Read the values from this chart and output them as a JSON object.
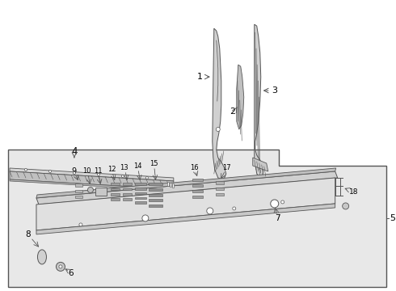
{
  "bg_color": "#ffffff",
  "border_color": "#555555",
  "line_color": "#555555",
  "text_color": "#000000",
  "box_bg": "#e8e8e8",
  "fig_width": 4.9,
  "fig_height": 3.6,
  "dpi": 100
}
